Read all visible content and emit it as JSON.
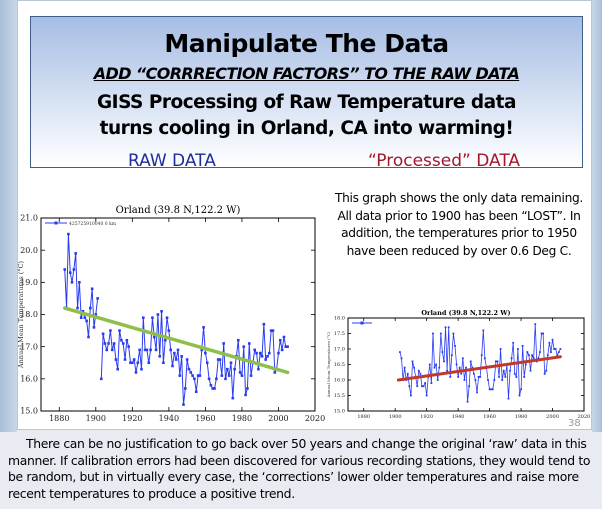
{
  "slide": {
    "title": "Manipulate The Data",
    "subtitle": "ADD “CORRRECTION FACTORS” TO THE RAW DATA",
    "headline_line1": "GISS Processing of Raw Temperature data",
    "headline_line2": "turns cooling in Orland, CA into warming!",
    "raw_label": "RAW DATA",
    "processed_label": "“Processed” DATA",
    "note": "This graph shows the only data remaining.  All data prior to 1900 has been “LOST”.  In addition, the temperatures prior to 1950 have been reduced by over 0.6 Deg C.",
    "page_number": "38",
    "footer": "There can be no justification to go back over 50 years and change the original ‘raw’ data in this manner.  If calibration errors had been discovered for various recording stations, they would tend to be random, but in virtually every case, the ‘corrections’ lower older temperatures and raise more recent temperatures to produce a positive trend.",
    "colors": {
      "raw_label": "#1f2c9a",
      "processed_label": "#a3172a",
      "series": "#2a3cf0",
      "raw_trend": "#8fbf4a",
      "processed_trend": "#c0392b"
    }
  },
  "chart_data": [
    {
      "type": "line",
      "title": "Orland (39.8 N,122.2 W)",
      "xlabel": "",
      "ylabel": "Annual Mean Temperatures (°C)",
      "xlim": [
        1870,
        2020
      ],
      "ylim": [
        15.0,
        21.0
      ],
      "xticks": [
        1880,
        1900,
        1920,
        1940,
        1960,
        1980,
        2000,
        2020
      ],
      "yticks": [
        "15.0",
        "16.0",
        "17.0",
        "18.0",
        "19.0",
        "20.0",
        "21.0"
      ],
      "legend": "top-left",
      "grid": false,
      "series": [
        {
          "name": "425725910040 0 km",
          "x": [
            1883,
            1884,
            1885,
            1886,
            1887,
            1888,
            1889,
            1890,
            1891,
            1892,
            1893,
            1894,
            1895,
            1896,
            1897,
            1898,
            1899,
            1900,
            1901,
            1903,
            1904,
            1905,
            1906,
            1907,
            1908,
            1909,
            1910,
            1911,
            1912,
            1913,
            1914,
            1915,
            1916,
            1917,
            1918,
            1919,
            1920,
            1921,
            1922,
            1923,
            1924,
            1925,
            1926,
            1927,
            1928,
            1929,
            1930,
            1931,
            1932,
            1933,
            1934,
            1935,
            1936,
            1937,
            1938,
            1939,
            1940,
            1941,
            1942,
            1943,
            1944,
            1945,
            1946,
            1947,
            1948,
            1949,
            1950,
            1951,
            1952,
            1953,
            1954,
            1955,
            1956,
            1957,
            1958,
            1959,
            1960,
            1961,
            1962,
            1963,
            1964,
            1965,
            1966,
            1967,
            1968,
            1969,
            1970,
            1971,
            1972,
            1973,
            1974,
            1975,
            1976,
            1977,
            1978,
            1979,
            1980,
            1981,
            1982,
            1983,
            1984,
            1985,
            1986,
            1987,
            1988,
            1989,
            1990,
            1991,
            1992,
            1993,
            1994,
            1995,
            1996,
            1997,
            1998,
            1999,
            2000,
            2001,
            2002,
            2003,
            2004,
            2005
          ],
          "y": [
            19.4,
            18.2,
            20.5,
            19.3,
            19.0,
            19.4,
            19.9,
            18.2,
            19.0,
            17.9,
            18.1,
            17.9,
            17.8,
            17.3,
            18.2,
            18.8,
            17.6,
            18.0,
            18.5,
            16.0,
            17.4,
            17.1,
            16.9,
            17.1,
            17.5,
            16.9,
            17.1,
            16.6,
            16.3,
            17.5,
            17.2,
            17.1,
            16.6,
            17.2,
            17.0,
            16.5,
            16.5,
            16.6,
            16.2,
            16.5,
            16.9,
            16.3,
            17.9,
            16.9,
            16.9,
            16.5,
            16.9,
            17.9,
            17.3,
            16.9,
            18.0,
            16.7,
            18.1,
            16.5,
            17.2,
            17.9,
            17.5,
            16.9,
            16.4,
            16.8,
            16.6,
            16.9,
            16.1,
            16.7,
            15.2,
            15.7,
            16.6,
            16.3,
            16.2,
            16.1,
            16.0,
            15.6,
            16.1,
            16.1,
            16.9,
            17.6,
            16.8,
            16.5,
            16.0,
            15.8,
            15.7,
            15.7,
            16.0,
            16.6,
            16.6,
            16.1,
            17.1,
            16.0,
            16.3,
            16.1,
            16.5,
            15.4,
            16.3,
            16.7,
            17.2,
            16.2,
            16.1,
            17.0,
            15.5,
            15.7,
            17.1,
            16.1,
            16.5,
            16.9,
            16.8,
            16.3,
            16.8,
            16.7,
            17.7,
            16.6,
            16.7,
            16.8,
            17.5,
            17.5,
            16.2,
            16.3,
            16.8,
            17.2,
            16.9,
            17.3,
            17.0,
            17.0
          ]
        }
      ],
      "trendline": {
        "x": [
          1883,
          2005
        ],
        "y": [
          18.2,
          16.2
        ]
      }
    },
    {
      "type": "line",
      "title": "Orland (39.8 N,122.2 W)",
      "xlabel": "",
      "ylabel": "Annual Mean Temperatures (°C)",
      "xlim": [
        1870,
        2020
      ],
      "ylim": [
        15.0,
        18.0
      ],
      "xticks": [
        1880,
        1900,
        1920,
        1940,
        1960,
        1980,
        2000,
        2020
      ],
      "yticks": [
        "15.0",
        "15.5",
        "16.0",
        "16.5",
        "17.0",
        "17.5",
        "18.0"
      ],
      "legend": "top-left",
      "grid": false,
      "series": [
        {
          "x": [
            1903,
            1904,
            1905,
            1906,
            1907,
            1908,
            1909,
            1910,
            1911,
            1912,
            1913,
            1914,
            1915,
            1916,
            1917,
            1918,
            1919,
            1920,
            1921,
            1922,
            1923,
            1924,
            1925,
            1926,
            1927,
            1928,
            1929,
            1930,
            1931,
            1932,
            1933,
            1934,
            1935,
            1936,
            1937,
            1938,
            1939,
            1940,
            1941,
            1942,
            1943,
            1944,
            1945,
            1946,
            1947,
            1948,
            1949,
            1950,
            1951,
            1952,
            1953,
            1954,
            1955,
            1956,
            1957,
            1958,
            1959,
            1960,
            1961,
            1962,
            1963,
            1964,
            1965,
            1966,
            1967,
            1968,
            1969,
            1970,
            1971,
            1972,
            1973,
            1974,
            1975,
            1976,
            1977,
            1978,
            1979,
            1980,
            1981,
            1982,
            1983,
            1984,
            1985,
            1986,
            1987,
            1988,
            1989,
            1990,
            1991,
            1992,
            1993,
            1994,
            1995,
            1996,
            1997,
            1998,
            1999,
            2000,
            2001,
            2002,
            2003,
            2004,
            2005
          ],
          "y": [
            16.9,
            16.7,
            16.0,
            16.4,
            16.0,
            16.2,
            15.8,
            15.5,
            16.6,
            16.4,
            16.1,
            15.8,
            16.3,
            16.2,
            15.8,
            15.8,
            15.9,
            15.5,
            16.1,
            16.5,
            15.9,
            17.5,
            16.4,
            16.5,
            16.0,
            16.4,
            17.5,
            16.9,
            16.6,
            17.7,
            16.3,
            17.7,
            16.1,
            16.8,
            17.5,
            17.1,
            16.5,
            16.1,
            16.4,
            16.2,
            16.7,
            16.0,
            16.4,
            15.3,
            15.8,
            16.6,
            16.4,
            16.2,
            16.0,
            15.6,
            16.1,
            16.1,
            16.8,
            17.6,
            16.7,
            16.4,
            16.0,
            15.7,
            15.7,
            15.7,
            16.0,
            16.6,
            16.6,
            16.1,
            17.0,
            16.0,
            16.3,
            16.1,
            16.5,
            15.4,
            16.3,
            16.7,
            17.2,
            16.2,
            16.1,
            17.0,
            15.5,
            15.7,
            17.1,
            16.1,
            16.5,
            16.9,
            16.8,
            16.3,
            16.8,
            16.7,
            17.8,
            16.6,
            16.7,
            16.9,
            17.5,
            17.5,
            16.2,
            16.3,
            16.8,
            17.2,
            16.9,
            17.3,
            17.0,
            17.0,
            16.8,
            16.9,
            17.0
          ]
        }
      ],
      "trendline": {
        "x": [
          1902,
          2005
        ],
        "y": [
          16.0,
          16.75
        ]
      }
    }
  ]
}
